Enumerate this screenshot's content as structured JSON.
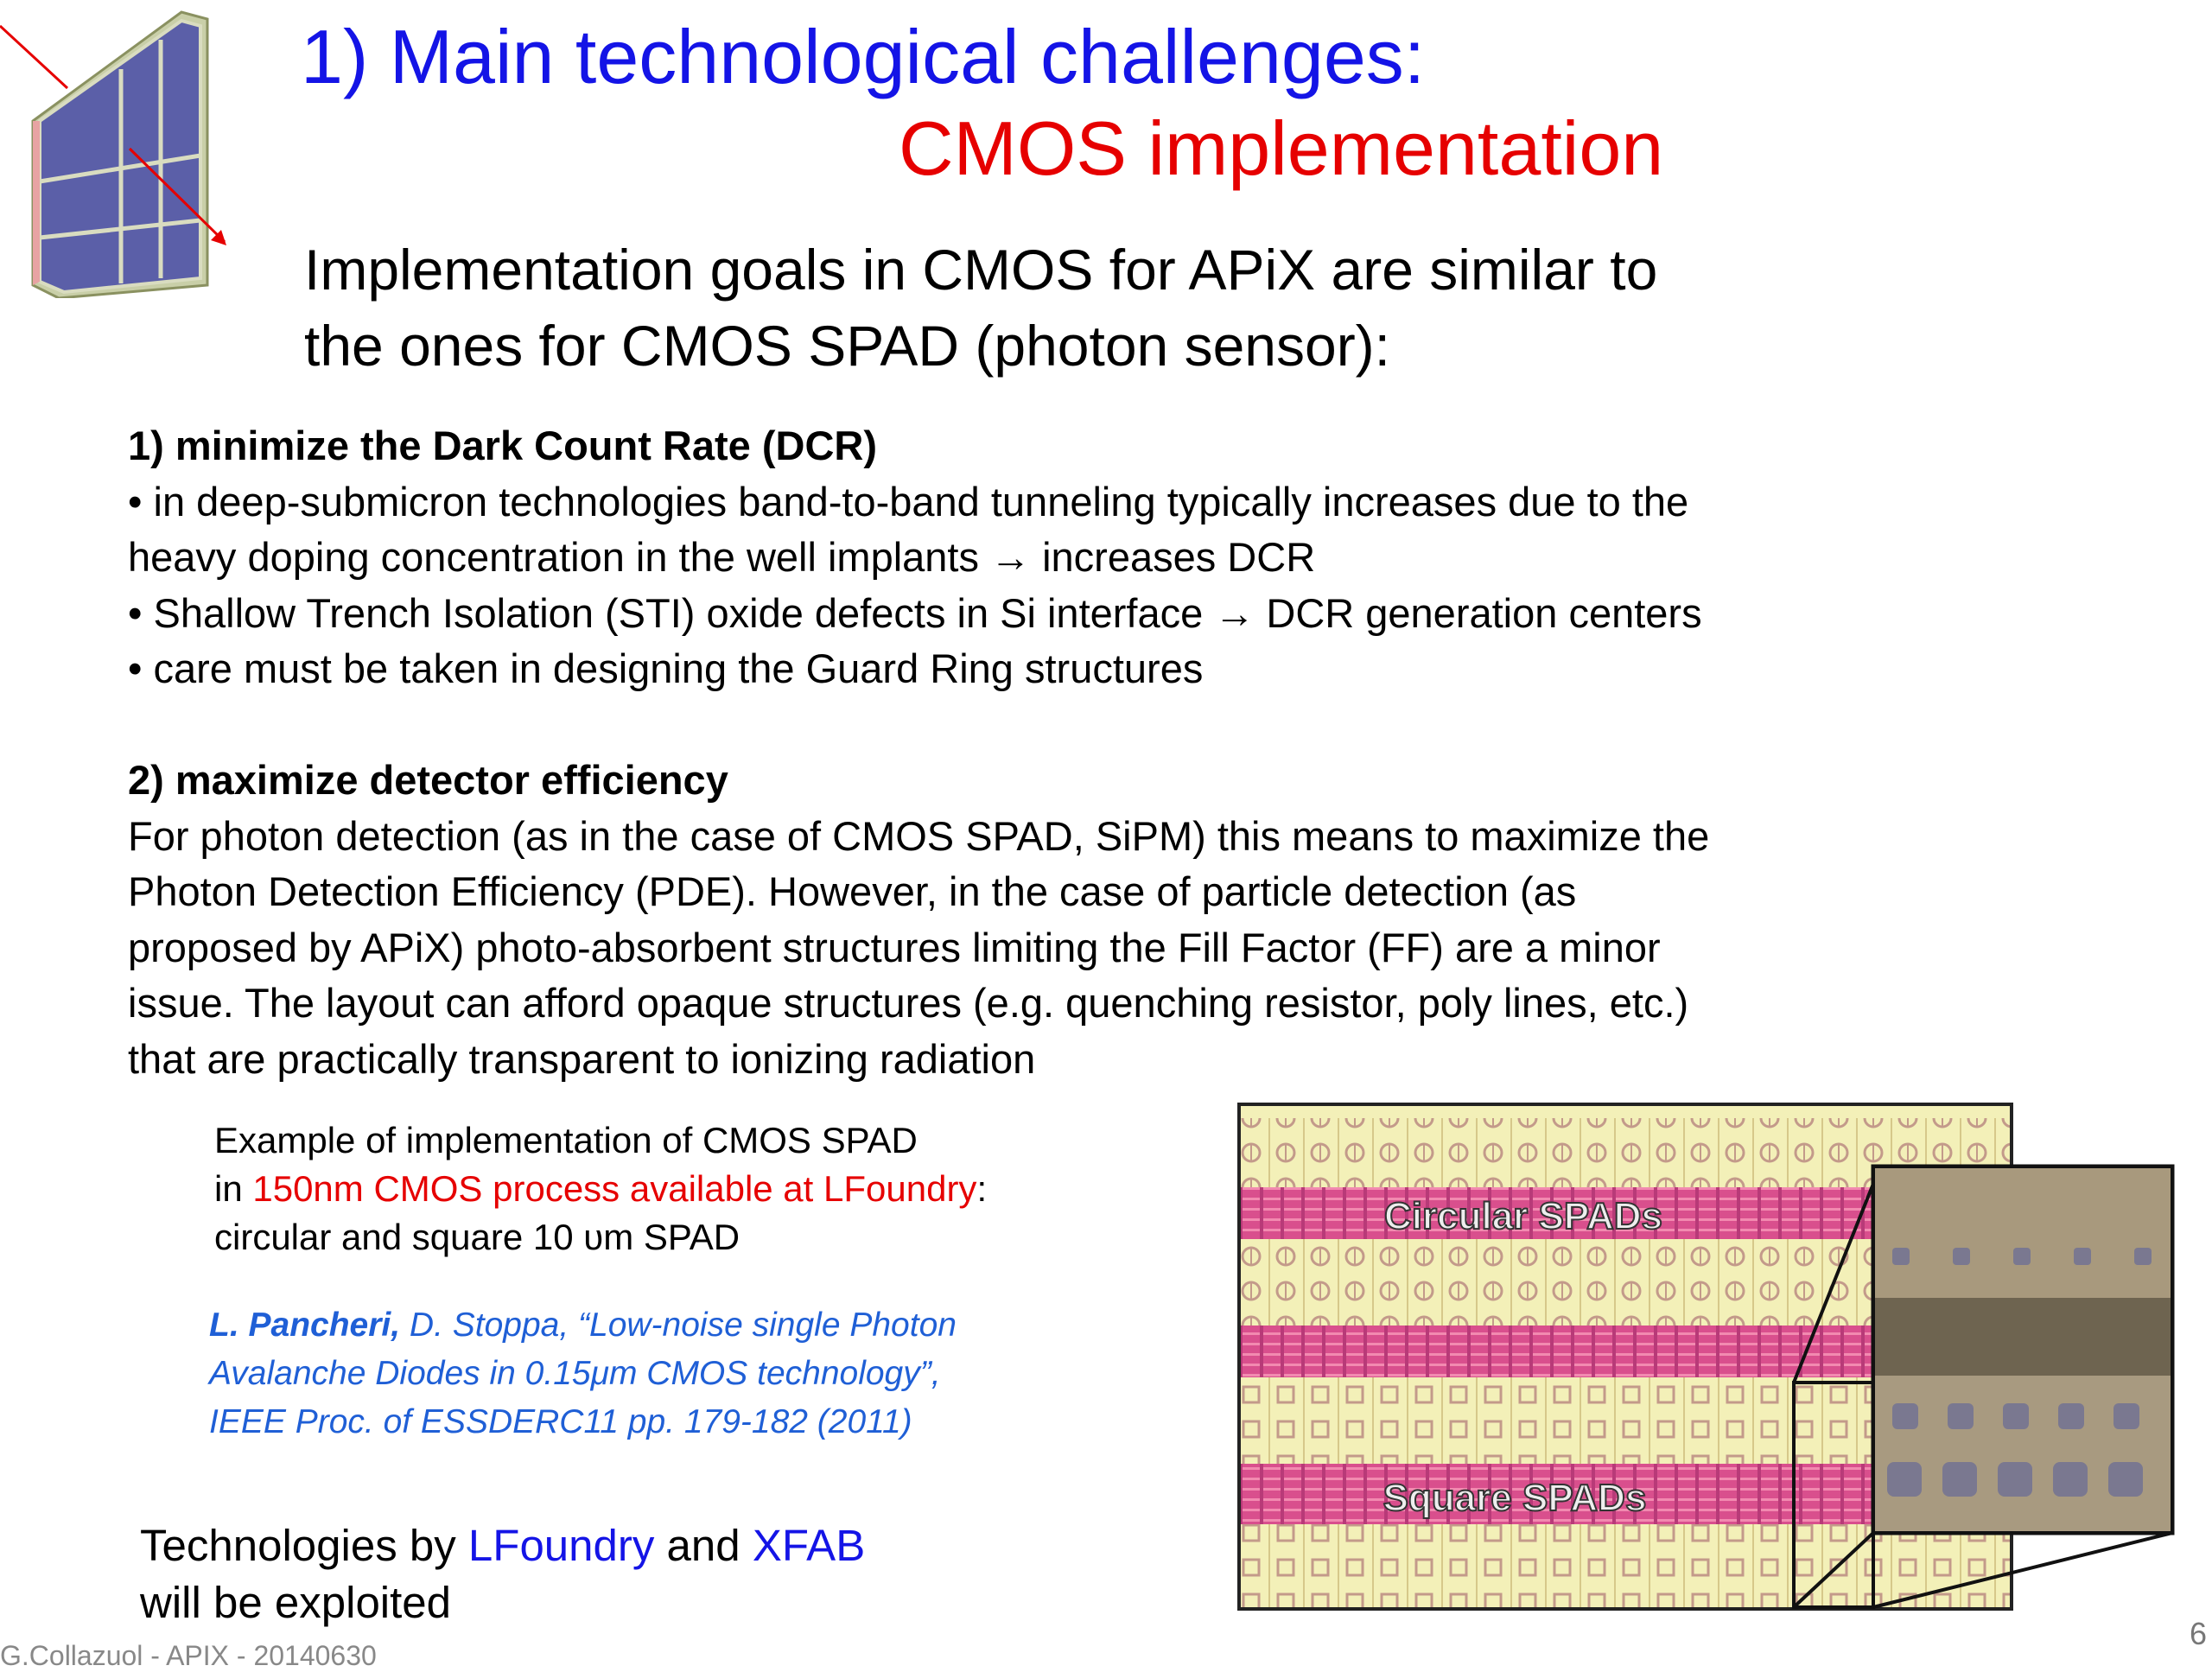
{
  "title": {
    "line1": "1) Main technological challenges:",
    "line2": "CMOS implementation"
  },
  "intro": {
    "line1": "Implementation goals in CMOS for APiX are similar to",
    "line2": "the ones for CMOS SPAD (photon sensor):"
  },
  "section1": {
    "heading": "1) minimize the Dark Count Rate (DCR)",
    "lines": [
      "• in deep-submicron technologies band-to-band tunneling typically increases due to the",
      "heavy doping concentration in the well implants → increases DCR",
      "• Shallow Trench Isolation (STI) oxide defects in Si interface → DCR generation centers",
      "• care must be taken in designing the Guard Ring structures"
    ]
  },
  "section2": {
    "heading": "2) maximize detector efficiency",
    "lines": [
      "For photon detection (as in the case of CMOS SPAD, SiPM) this means to maximize the",
      "Photon Detection Efficiency (PDE). However, in the case of particle detection (as",
      "proposed by APiX) photo-absorbent structures limiting the Fill Factor (FF) are a minor",
      "issue. The layout can afford opaque structures (e.g. quenching resistor, poly lines, etc.)",
      "that are practically transparent to ionizing radiation"
    ]
  },
  "example": {
    "line1": "Example of implementation of CMOS SPAD",
    "line2_prefix": "in ",
    "line2_highlight": "150nm CMOS process available at LFoundry",
    "line2_suffix": ":",
    "line3": "circular and square 10 υm SPAD"
  },
  "citation": {
    "author_bold": "L. Pancheri,",
    "line1_rest": " D. Stoppa, “Low-noise single Photon",
    "line2": "Avalanche Diodes in 0.15μm CMOS technology”,",
    "line3": "IEEE Proc. of ESSDERC11  pp. 179-182 (2011)"
  },
  "technologies": {
    "prefix": "Technologies by ",
    "vendor1": "LFoundry",
    "middle": " and ",
    "vendor2": "XFAB",
    "line2": " will be exploited"
  },
  "chip_image": {
    "label_circular": "Circular SPADs",
    "label_square": "Square SPADs"
  },
  "footer": {
    "text": "G.Collazuol - APIX - 20140630",
    "page_number": "6"
  }
}
